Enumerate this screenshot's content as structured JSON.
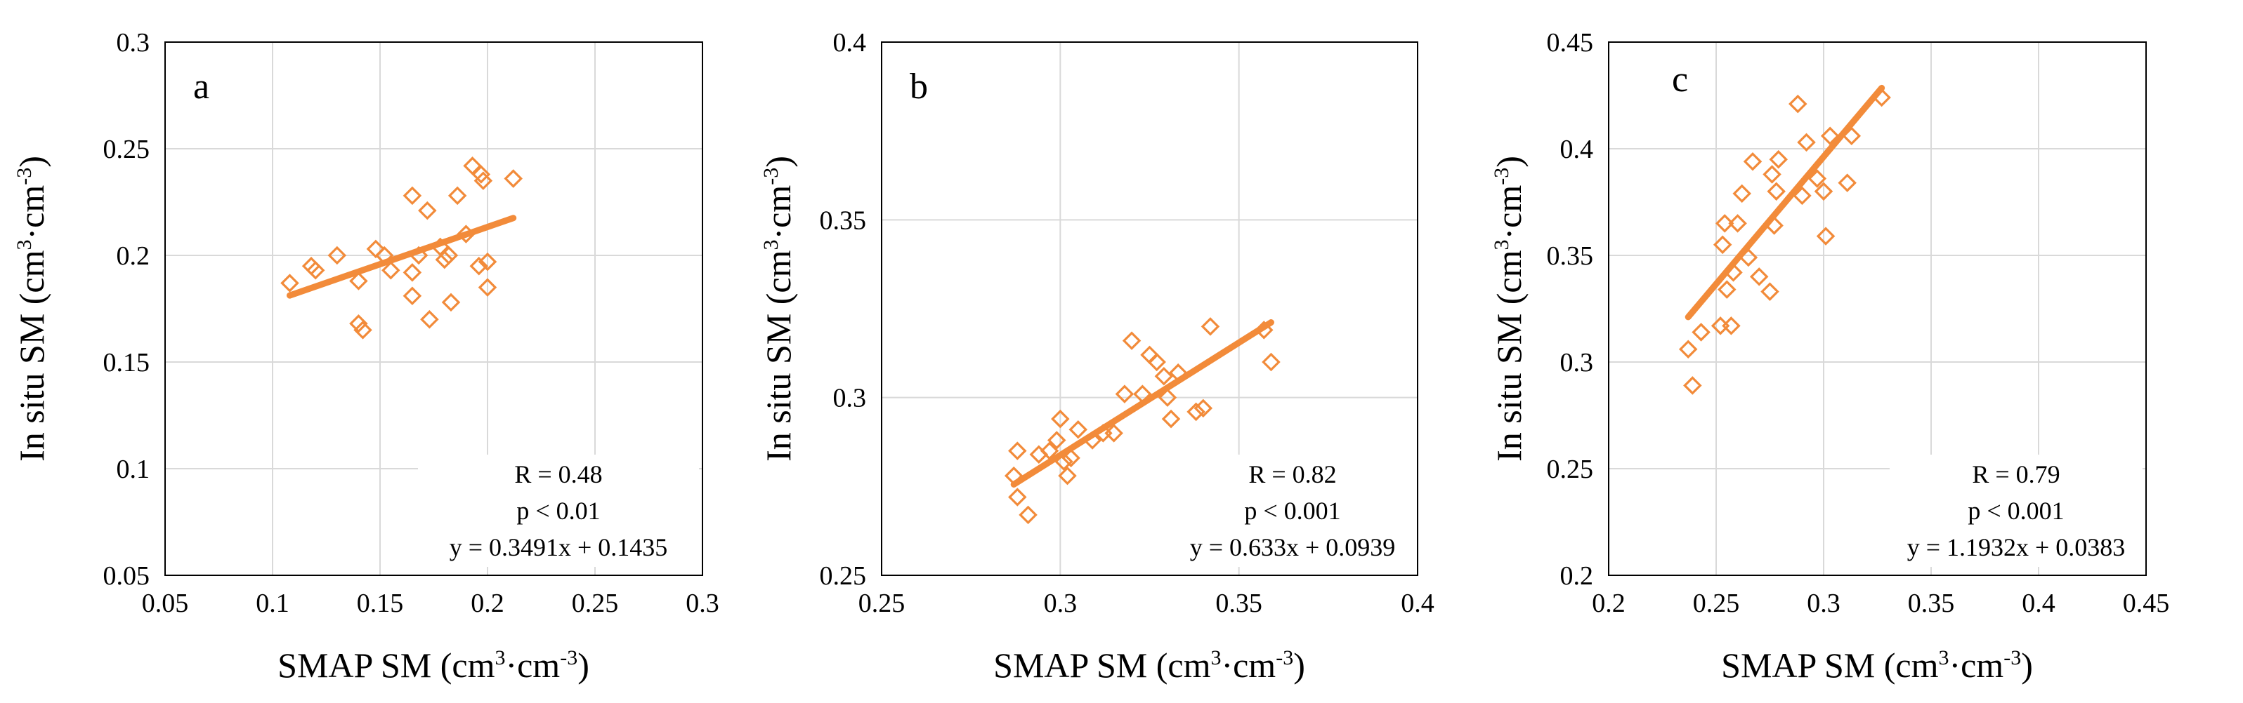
{
  "colors": {
    "accent": "#f28b3a",
    "grid": "#d9d9d9",
    "frame": "#000000",
    "background": "#ffffff"
  },
  "chart_data": [
    {
      "type": "scatter",
      "panel_label": "a",
      "xlabel": {
        "text": "SMAP SM (cm",
        "sup1": "3",
        "mid": "·cm",
        "sup2": "-3",
        "end": ")"
      },
      "ylabel": {
        "text": "In situ SM (cm",
        "sup1": "3",
        "mid": "·cm",
        "sup2": "-3",
        "end": ")"
      },
      "xlim": [
        0.05,
        0.3
      ],
      "ylim": [
        0.05,
        0.3
      ],
      "xticks": [
        0.05,
        0.1,
        0.15,
        0.2,
        0.25,
        0.3
      ],
      "yticks": [
        0.05,
        0.1,
        0.15,
        0.2,
        0.25,
        0.3
      ],
      "xtick_labels": [
        "0.05",
        "0.1",
        "0.15",
        "0.2",
        "0.25",
        "0.3"
      ],
      "ytick_labels": [
        "0.05",
        "0.1",
        "0.15",
        "0.2",
        "0.25",
        "0.3"
      ],
      "grid": true,
      "points": [
        [
          0.108,
          0.187
        ],
        [
          0.118,
          0.195
        ],
        [
          0.12,
          0.193
        ],
        [
          0.13,
          0.2
        ],
        [
          0.14,
          0.188
        ],
        [
          0.14,
          0.168
        ],
        [
          0.142,
          0.165
        ],
        [
          0.148,
          0.203
        ],
        [
          0.152,
          0.2
        ],
        [
          0.155,
          0.193
        ],
        [
          0.165,
          0.228
        ],
        [
          0.165,
          0.192
        ],
        [
          0.165,
          0.181
        ],
        [
          0.168,
          0.2
        ],
        [
          0.172,
          0.221
        ],
        [
          0.173,
          0.17
        ],
        [
          0.178,
          0.204
        ],
        [
          0.18,
          0.198
        ],
        [
          0.182,
          0.2
        ],
        [
          0.183,
          0.178
        ],
        [
          0.186,
          0.228
        ],
        [
          0.19,
          0.21
        ],
        [
          0.193,
          0.242
        ],
        [
          0.196,
          0.195
        ],
        [
          0.197,
          0.238
        ],
        [
          0.198,
          0.235
        ],
        [
          0.2,
          0.197
        ],
        [
          0.2,
          0.185
        ],
        [
          0.212,
          0.236
        ]
      ],
      "fit": {
        "slope": 0.3491,
        "intercept": 0.1435,
        "x_range": [
          0.108,
          0.212
        ]
      },
      "stats": {
        "r": "R = 0.48",
        "p": "p < 0.01",
        "equation": "y = 0.3491x + 0.1435"
      }
    },
    {
      "type": "scatter",
      "panel_label": "b",
      "xlabel": {
        "text": "SMAP SM (cm",
        "sup1": "3",
        "mid": "·cm",
        "sup2": "-3",
        "end": ")"
      },
      "ylabel": {
        "text": "In situ SM (cm",
        "sup1": "3",
        "mid": "·cm",
        "sup2": "-3",
        "end": ")"
      },
      "xlim": [
        0.25,
        0.4
      ],
      "ylim": [
        0.25,
        0.4
      ],
      "xticks": [
        0.25,
        0.3,
        0.35,
        0.4
      ],
      "yticks": [
        0.25,
        0.3,
        0.35,
        0.4
      ],
      "xtick_labels": [
        "0.25",
        "0.3",
        "0.35",
        "0.4"
      ],
      "ytick_labels": [
        "0.25",
        "0.3",
        "0.35",
        "0.4"
      ],
      "grid": true,
      "points": [
        [
          0.287,
          0.278
        ],
        [
          0.288,
          0.285
        ],
        [
          0.288,
          0.272
        ],
        [
          0.291,
          0.267
        ],
        [
          0.294,
          0.284
        ],
        [
          0.297,
          0.285
        ],
        [
          0.299,
          0.288
        ],
        [
          0.3,
          0.294
        ],
        [
          0.301,
          0.282
        ],
        [
          0.302,
          0.278
        ],
        [
          0.303,
          0.283
        ],
        [
          0.305,
          0.291
        ],
        [
          0.309,
          0.288
        ],
        [
          0.312,
          0.29
        ],
        [
          0.315,
          0.29
        ],
        [
          0.318,
          0.301
        ],
        [
          0.32,
          0.316
        ],
        [
          0.323,
          0.301
        ],
        [
          0.325,
          0.312
        ],
        [
          0.327,
          0.31
        ],
        [
          0.329,
          0.306
        ],
        [
          0.33,
          0.3
        ],
        [
          0.331,
          0.294
        ],
        [
          0.333,
          0.307
        ],
        [
          0.338,
          0.296
        ],
        [
          0.34,
          0.297
        ],
        [
          0.342,
          0.32
        ],
        [
          0.357,
          0.319
        ],
        [
          0.359,
          0.31
        ]
      ],
      "fit": {
        "slope": 0.633,
        "intercept": 0.0939,
        "x_range": [
          0.287,
          0.359
        ]
      },
      "stats": {
        "r": "R = 0.82",
        "p": "p < 0.001",
        "equation": "y = 0.633x + 0.0939"
      }
    },
    {
      "type": "scatter",
      "panel_label": "c",
      "xlabel": {
        "text": "SMAP SM (cm",
        "sup1": "3",
        "mid": "·cm",
        "sup2": "-3",
        "end": ")"
      },
      "ylabel": {
        "text": "In situ SM (cm",
        "sup1": "3",
        "mid": "·cm",
        "sup2": "-3",
        "end": ")"
      },
      "xlim": [
        0.2,
        0.45
      ],
      "ylim": [
        0.2,
        0.45
      ],
      "xticks": [
        0.2,
        0.25,
        0.3,
        0.35,
        0.4,
        0.45
      ],
      "yticks": [
        0.2,
        0.25,
        0.3,
        0.35,
        0.4,
        0.45
      ],
      "xtick_labels": [
        "0.2",
        "0.25",
        "0.3",
        "0.35",
        "0.4",
        "0.45"
      ],
      "ytick_labels": [
        "0.2",
        "0.25",
        "0.3",
        "0.35",
        "0.4",
        "0.45"
      ],
      "grid": true,
      "points": [
        [
          0.237,
          0.306
        ],
        [
          0.239,
          0.289
        ],
        [
          0.243,
          0.314
        ],
        [
          0.252,
          0.317
        ],
        [
          0.253,
          0.355
        ],
        [
          0.254,
          0.365
        ],
        [
          0.255,
          0.334
        ],
        [
          0.257,
          0.317
        ],
        [
          0.258,
          0.342
        ],
        [
          0.26,
          0.365
        ],
        [
          0.262,
          0.379
        ],
        [
          0.265,
          0.349
        ],
        [
          0.267,
          0.394
        ],
        [
          0.27,
          0.34
        ],
        [
          0.275,
          0.333
        ],
        [
          0.276,
          0.388
        ],
        [
          0.277,
          0.364
        ],
        [
          0.278,
          0.38
        ],
        [
          0.279,
          0.395
        ],
        [
          0.288,
          0.421
        ],
        [
          0.29,
          0.378
        ],
        [
          0.292,
          0.403
        ],
        [
          0.297,
          0.386
        ],
        [
          0.3,
          0.38
        ],
        [
          0.301,
          0.359
        ],
        [
          0.303,
          0.406
        ],
        [
          0.311,
          0.384
        ],
        [
          0.313,
          0.406
        ],
        [
          0.327,
          0.424
        ]
      ],
      "fit": {
        "slope": 1.1932,
        "intercept": 0.0383,
        "x_range": [
          0.237,
          0.327
        ]
      },
      "stats": {
        "r": "R = 0.79",
        "p": "p < 0.001",
        "equation": "y = 1.1932x + 0.0383"
      }
    }
  ]
}
